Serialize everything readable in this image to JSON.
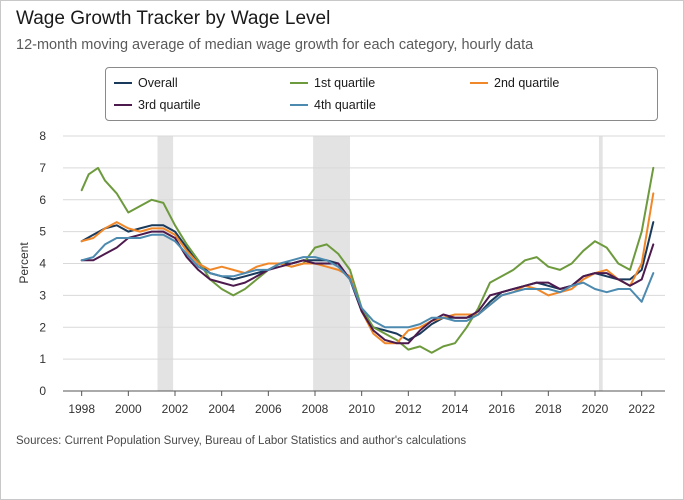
{
  "title": "Wage Growth Tracker by Wage Level",
  "subtitle": "12-month moving average of median wage growth for each category, hourly data",
  "source": "Sources: Current Population Survey, Bureau of Labor Statistics and author's calculations",
  "chart_data": {
    "type": "line",
    "title": "Wage Growth Tracker by Wage Level",
    "xlabel": "",
    "ylabel": "Percent",
    "xlim": [
      1997.2,
      2023.0
    ],
    "ylim": [
      0,
      8
    ],
    "x_ticks": [
      "1998",
      "2000",
      "2002",
      "2004",
      "2006",
      "2008",
      "2010",
      "2012",
      "2014",
      "2016",
      "2018",
      "2020",
      "2022"
    ],
    "y_ticks": [
      "0",
      "1",
      "2",
      "3",
      "4",
      "5",
      "6",
      "7",
      "8"
    ],
    "grid": "horizontal",
    "legend_position": "top",
    "recessions": [
      {
        "start": 2001.25,
        "end": 2001.92
      },
      {
        "start": 2007.92,
        "end": 2009.5
      },
      {
        "start": 2020.17,
        "end": 2020.33
      }
    ],
    "series": [
      {
        "name": "Overall",
        "color": "#1a3a5c",
        "x": [
          1998.0,
          1998.5,
          1999.0,
          1999.5,
          2000.0,
          2000.5,
          2001.0,
          2001.5,
          2002.0,
          2002.5,
          2003.0,
          2003.5,
          2004.0,
          2004.5,
          2005.0,
          2005.5,
          2006.0,
          2006.5,
          2007.0,
          2007.5,
          2008.0,
          2008.5,
          2009.0,
          2009.5,
          2010.0,
          2010.5,
          2011.0,
          2011.5,
          2012.0,
          2012.5,
          2013.0,
          2013.5,
          2014.0,
          2014.5,
          2015.0,
          2015.5,
          2016.0,
          2016.5,
          2017.0,
          2017.5,
          2018.0,
          2018.5,
          2019.0,
          2019.5,
          2020.0,
          2020.5,
          2021.0,
          2021.5,
          2022.0,
          2022.5
        ],
        "y": [
          4.7,
          4.9,
          5.1,
          5.2,
          5.0,
          5.1,
          5.2,
          5.2,
          5.0,
          4.5,
          4.0,
          3.7,
          3.6,
          3.5,
          3.6,
          3.7,
          3.8,
          4.0,
          4.0,
          4.1,
          4.1,
          4.1,
          4.0,
          3.5,
          2.5,
          2.0,
          1.9,
          1.8,
          1.6,
          1.8,
          2.1,
          2.3,
          2.3,
          2.3,
          2.4,
          2.8,
          3.1,
          3.2,
          3.3,
          3.4,
          3.3,
          3.2,
          3.3,
          3.6,
          3.7,
          3.6,
          3.5,
          3.5,
          3.8,
          5.3
        ]
      },
      {
        "name": "1st quartile",
        "color": "#6e9a3e",
        "x": [
          1998.0,
          1998.3,
          1998.7,
          1999.0,
          1999.5,
          2000.0,
          2000.5,
          2001.0,
          2001.5,
          2002.0,
          2002.5,
          2003.0,
          2003.5,
          2004.0,
          2004.5,
          2005.0,
          2005.5,
          2006.0,
          2006.5,
          2007.0,
          2007.5,
          2008.0,
          2008.5,
          2009.0,
          2009.5,
          2010.0,
          2010.5,
          2011.0,
          2011.5,
          2012.0,
          2012.5,
          2013.0,
          2013.5,
          2014.0,
          2014.5,
          2015.0,
          2015.5,
          2016.0,
          2016.5,
          2017.0,
          2017.5,
          2018.0,
          2018.5,
          2019.0,
          2019.5,
          2020.0,
          2020.5,
          2021.0,
          2021.5,
          2022.0,
          2022.5
        ],
        "y": [
          6.3,
          6.8,
          7.0,
          6.6,
          6.2,
          5.6,
          5.8,
          6.0,
          5.9,
          5.2,
          4.6,
          4.1,
          3.5,
          3.2,
          3.0,
          3.2,
          3.5,
          3.8,
          4.0,
          3.9,
          4.0,
          4.5,
          4.6,
          4.3,
          3.8,
          2.6,
          2.0,
          1.8,
          1.6,
          1.3,
          1.4,
          1.2,
          1.4,
          1.5,
          2.0,
          2.6,
          3.4,
          3.6,
          3.8,
          4.1,
          4.2,
          3.9,
          3.8,
          4.0,
          4.4,
          4.7,
          4.5,
          4.0,
          3.8,
          5.0,
          7.0
        ]
      },
      {
        "name": "2nd quartile",
        "color": "#f0882a",
        "x": [
          1998.0,
          1998.5,
          1999.0,
          1999.5,
          2000.0,
          2000.5,
          2001.0,
          2001.5,
          2002.0,
          2002.5,
          2003.0,
          2003.5,
          2004.0,
          2004.5,
          2005.0,
          2005.5,
          2006.0,
          2006.5,
          2007.0,
          2007.5,
          2008.0,
          2008.5,
          2009.0,
          2009.5,
          2010.0,
          2010.5,
          2011.0,
          2011.5,
          2012.0,
          2012.5,
          2013.0,
          2013.5,
          2014.0,
          2014.5,
          2015.0,
          2015.5,
          2016.0,
          2016.5,
          2017.0,
          2017.5,
          2018.0,
          2018.5,
          2019.0,
          2019.5,
          2020.0,
          2020.5,
          2021.0,
          2021.5,
          2022.0,
          2022.5
        ],
        "y": [
          4.7,
          4.8,
          5.1,
          5.3,
          5.1,
          5.0,
          5.1,
          5.1,
          4.9,
          4.4,
          4.0,
          3.8,
          3.9,
          3.8,
          3.7,
          3.9,
          4.0,
          4.0,
          3.9,
          4.0,
          4.0,
          3.9,
          3.8,
          3.6,
          2.5,
          1.8,
          1.5,
          1.5,
          1.9,
          2.0,
          2.2,
          2.3,
          2.4,
          2.4,
          2.4,
          2.7,
          3.0,
          3.1,
          3.3,
          3.2,
          3.0,
          3.1,
          3.2,
          3.5,
          3.7,
          3.8,
          3.5,
          3.3,
          4.0,
          6.2
        ]
      },
      {
        "name": "3rd quartile",
        "color": "#4d1a4d",
        "x": [
          1998.0,
          1998.5,
          1999.0,
          1999.5,
          2000.0,
          2000.5,
          2001.0,
          2001.5,
          2002.0,
          2002.5,
          2003.0,
          2003.5,
          2004.0,
          2004.5,
          2005.0,
          2005.5,
          2006.0,
          2006.5,
          2007.0,
          2007.5,
          2008.0,
          2008.5,
          2009.0,
          2009.5,
          2010.0,
          2010.5,
          2011.0,
          2011.5,
          2012.0,
          2012.5,
          2013.0,
          2013.5,
          2014.0,
          2014.5,
          2015.0,
          2015.5,
          2016.0,
          2016.5,
          2017.0,
          2017.5,
          2018.0,
          2018.5,
          2019.0,
          2019.5,
          2020.0,
          2020.5,
          2021.0,
          2021.5,
          2022.0,
          2022.5
        ],
        "y": [
          4.1,
          4.1,
          4.3,
          4.5,
          4.8,
          4.9,
          5.0,
          5.0,
          4.8,
          4.2,
          3.8,
          3.5,
          3.4,
          3.3,
          3.4,
          3.6,
          3.8,
          3.9,
          4.0,
          4.1,
          4.0,
          4.0,
          4.0,
          3.5,
          2.5,
          1.9,
          1.6,
          1.5,
          1.5,
          1.9,
          2.2,
          2.4,
          2.3,
          2.3,
          2.5,
          3.0,
          3.1,
          3.2,
          3.3,
          3.4,
          3.4,
          3.2,
          3.3,
          3.6,
          3.7,
          3.7,
          3.5,
          3.3,
          3.5,
          4.6
        ]
      },
      {
        "name": "4th quartile",
        "color": "#4d8ab0",
        "x": [
          1998.0,
          1998.5,
          1999.0,
          1999.5,
          2000.0,
          2000.5,
          2001.0,
          2001.5,
          2002.0,
          2002.5,
          2003.0,
          2003.5,
          2004.0,
          2004.5,
          2005.0,
          2005.5,
          2006.0,
          2006.5,
          2007.0,
          2007.5,
          2008.0,
          2008.5,
          2009.0,
          2009.5,
          2010.0,
          2010.5,
          2011.0,
          2011.5,
          2012.0,
          2012.5,
          2013.0,
          2013.5,
          2014.0,
          2014.5,
          2015.0,
          2015.5,
          2016.0,
          2016.5,
          2017.0,
          2017.5,
          2018.0,
          2018.5,
          2019.0,
          2019.5,
          2020.0,
          2020.5,
          2021.0,
          2021.5,
          2022.0,
          2022.5
        ],
        "y": [
          4.1,
          4.2,
          4.6,
          4.8,
          4.8,
          4.8,
          4.9,
          4.9,
          4.7,
          4.3,
          3.9,
          3.7,
          3.6,
          3.6,
          3.7,
          3.8,
          3.8,
          4.0,
          4.1,
          4.2,
          4.2,
          4.1,
          3.9,
          3.5,
          2.6,
          2.2,
          2.0,
          2.0,
          2.0,
          2.1,
          2.3,
          2.3,
          2.2,
          2.2,
          2.4,
          2.7,
          3.0,
          3.1,
          3.2,
          3.2,
          3.2,
          3.1,
          3.3,
          3.4,
          3.2,
          3.1,
          3.2,
          3.2,
          2.8,
          3.7
        ]
      }
    ]
  }
}
